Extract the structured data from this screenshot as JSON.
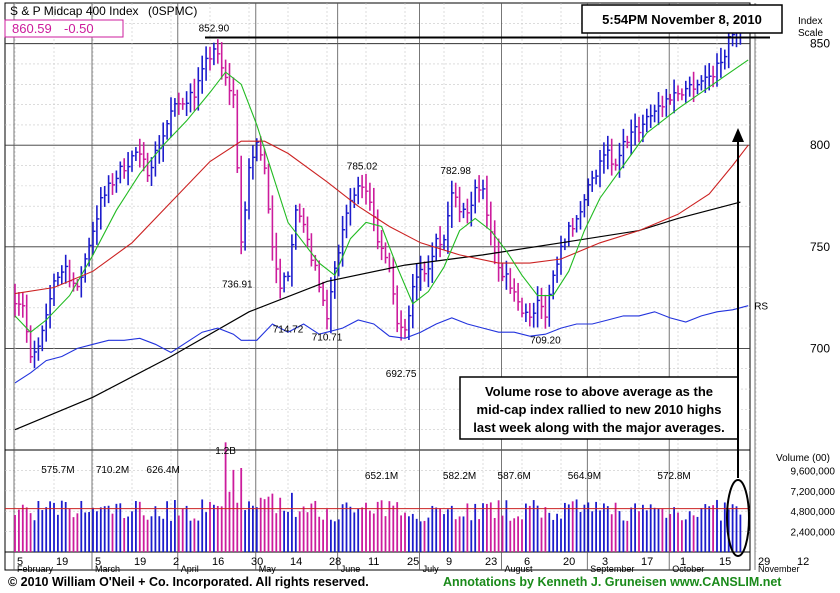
{
  "chart_data": {
    "type": "ohlc",
    "title": "S & P Midcap 400 Index",
    "symbol": "(0SPMC)",
    "last_price": "860.59",
    "change": "-0.50",
    "timestamp": "5:54PM November 8, 2010",
    "y_axis_label": [
      "Index",
      "Scale"
    ],
    "price_ticks": [
      850,
      800,
      750,
      700
    ],
    "ylim": [
      650,
      870
    ],
    "volume_label": "Volume (00)",
    "volume_ticks": [
      "9,600,000",
      "7,200,000",
      "4,800,000",
      "2,400,000"
    ],
    "volume_tick_values": [
      9600000,
      7200000,
      4800000,
      2400000
    ],
    "volume_max": 12000000,
    "rs_label": "RS",
    "x_tick_labels": [
      "5",
      "19",
      "5",
      "19",
      "2",
      "16",
      "30",
      "14",
      "28",
      "11",
      "25",
      "9",
      "23",
      "6",
      "20",
      "3",
      "17",
      "1",
      "15",
      "29",
      "12"
    ],
    "month_labels": [
      {
        "label": "February",
        "day": 0
      },
      {
        "label": "March",
        "day": 20
      },
      {
        "label": "April",
        "day": 42
      },
      {
        "label": "May",
        "day": 62
      },
      {
        "label": "June",
        "day": 83
      },
      {
        "label": "July",
        "day": 104
      },
      {
        "label": "August",
        "day": 125
      },
      {
        "label": "September",
        "day": 147
      },
      {
        "label": "October",
        "day": 168
      },
      {
        "label": "November",
        "day": 190
      }
    ],
    "x_tick_days": [
      0,
      10,
      20,
      30,
      40,
      50,
      60,
      70,
      80,
      90,
      100,
      110,
      120,
      130,
      140,
      150,
      160,
      170,
      180,
      190,
      200
    ],
    "price_annotations": [
      {
        "label": "852.90",
        "day": 51,
        "value": 852.9,
        "pos": "above"
      },
      {
        "label": "736.91",
        "day": 57,
        "value": 736.9,
        "pos": "below"
      },
      {
        "label": "714.72",
        "day": 70,
        "value": 714.7,
        "pos": "below"
      },
      {
        "label": "710.71",
        "day": 80,
        "value": 710.7,
        "pos": "below"
      },
      {
        "label": "785.02",
        "day": 89,
        "value": 785.0,
        "pos": "above"
      },
      {
        "label": "692.75",
        "day": 99,
        "value": 692.8,
        "pos": "below"
      },
      {
        "label": "782.98",
        "day": 113,
        "value": 783.0,
        "pos": "above"
      },
      {
        "label": "709.20",
        "day": 136,
        "value": 709.2,
        "pos": "below"
      }
    ],
    "volume_annotations": [
      {
        "label": "575.7M",
        "day": 11
      },
      {
        "label": "710.2M",
        "day": 25
      },
      {
        "label": "626.4M",
        "day": 38
      },
      {
        "label": "1.2B",
        "day": 54
      },
      {
        "label": "652.1M",
        "day": 94
      },
      {
        "label": "582.2M",
        "day": 114
      },
      {
        "label": "587.6M",
        "day": 128
      },
      {
        "label": "564.9M",
        "day": 146
      },
      {
        "label": "572.8M",
        "day": 169
      }
    ],
    "price_keypoints": [
      [
        0,
        725
      ],
      [
        2,
        722
      ],
      [
        4,
        694
      ],
      [
        6,
        700
      ],
      [
        8,
        714
      ],
      [
        10,
        734
      ],
      [
        13,
        740
      ],
      [
        16,
        728
      ],
      [
        19,
        752
      ],
      [
        22,
        772
      ],
      [
        25,
        782
      ],
      [
        28,
        790
      ],
      [
        31,
        796
      ],
      [
        34,
        788
      ],
      [
        37,
        800
      ],
      [
        40,
        816
      ],
      [
        43,
        822
      ],
      [
        46,
        826
      ],
      [
        49,
        840
      ],
      [
        51,
        848
      ],
      [
        54,
        832
      ],
      [
        56,
        824
      ],
      [
        58,
        752
      ],
      [
        60,
        788
      ],
      [
        62,
        800
      ],
      [
        64,
        790
      ],
      [
        66,
        748
      ],
      [
        68,
        728
      ],
      [
        70,
        738
      ],
      [
        72,
        770
      ],
      [
        74,
        758
      ],
      [
        76,
        746
      ],
      [
        78,
        730
      ],
      [
        80,
        716
      ],
      [
        82,
        740
      ],
      [
        84,
        760
      ],
      [
        86,
        770
      ],
      [
        88,
        780
      ],
      [
        90,
        776
      ],
      [
        92,
        762
      ],
      [
        94,
        748
      ],
      [
        96,
        738
      ],
      [
        98,
        712
      ],
      [
        100,
        708
      ],
      [
        102,
        728
      ],
      [
        104,
        740
      ],
      [
        106,
        738
      ],
      [
        108,
        756
      ],
      [
        110,
        752
      ],
      [
        112,
        776
      ],
      [
        114,
        770
      ],
      [
        116,
        766
      ],
      [
        118,
        778
      ],
      [
        120,
        776
      ],
      [
        122,
        756
      ],
      [
        124,
        742
      ],
      [
        126,
        734
      ],
      [
        128,
        728
      ],
      [
        130,
        720
      ],
      [
        132,
        714
      ],
      [
        134,
        722
      ],
      [
        136,
        718
      ],
      [
        138,
        736
      ],
      [
        140,
        752
      ],
      [
        142,
        758
      ],
      [
        144,
        762
      ],
      [
        146,
        776
      ],
      [
        148,
        782
      ],
      [
        150,
        790
      ],
      [
        152,
        796
      ],
      [
        154,
        788
      ],
      [
        156,
        800
      ],
      [
        158,
        806
      ],
      [
        160,
        808
      ],
      [
        162,
        814
      ],
      [
        164,
        818
      ],
      [
        166,
        820
      ],
      [
        168,
        824
      ],
      [
        170,
        826
      ],
      [
        172,
        828
      ],
      [
        174,
        830
      ],
      [
        176,
        832
      ],
      [
        178,
        834
      ],
      [
        180,
        838
      ],
      [
        182,
        846
      ],
      [
        184,
        856
      ],
      [
        186,
        860.59
      ]
    ],
    "price_ma_long_keypoints": [
      [
        0,
        660
      ],
      [
        20,
        676
      ],
      [
        40,
        696
      ],
      [
        60,
        718
      ],
      [
        80,
        733
      ],
      [
        100,
        741
      ],
      [
        120,
        746
      ],
      [
        140,
        752
      ],
      [
        160,
        758
      ],
      [
        170,
        764
      ],
      [
        186,
        772
      ]
    ],
    "price_ma_mid_keypoints": [
      [
        0,
        727
      ],
      [
        10,
        730
      ],
      [
        20,
        738
      ],
      [
        30,
        752
      ],
      [
        40,
        772
      ],
      [
        50,
        792
      ],
      [
        58,
        802
      ],
      [
        64,
        802
      ],
      [
        70,
        796
      ],
      [
        80,
        782
      ],
      [
        88,
        770
      ],
      [
        96,
        760
      ],
      [
        104,
        752
      ],
      [
        114,
        746
      ],
      [
        124,
        742
      ],
      [
        132,
        742
      ],
      [
        140,
        744
      ],
      [
        150,
        752
      ],
      [
        160,
        758
      ],
      [
        170,
        766
      ],
      [
        178,
        776
      ],
      [
        184,
        790
      ],
      [
        188,
        800
      ]
    ],
    "price_ma_short_keypoints": [
      [
        0,
        716
      ],
      [
        4,
        708
      ],
      [
        8,
        714
      ],
      [
        14,
        726
      ],
      [
        20,
        746
      ],
      [
        26,
        768
      ],
      [
        32,
        786
      ],
      [
        38,
        800
      ],
      [
        44,
        812
      ],
      [
        50,
        826
      ],
      [
        54,
        836
      ],
      [
        58,
        830
      ],
      [
        62,
        810
      ],
      [
        66,
        786
      ],
      [
        70,
        762
      ],
      [
        74,
        752
      ],
      [
        78,
        742
      ],
      [
        82,
        736
      ],
      [
        86,
        754
      ],
      [
        90,
        762
      ],
      [
        94,
        760
      ],
      [
        98,
        740
      ],
      [
        102,
        722
      ],
      [
        106,
        728
      ],
      [
        110,
        740
      ],
      [
        114,
        758
      ],
      [
        118,
        764
      ],
      [
        122,
        758
      ],
      [
        126,
        748
      ],
      [
        130,
        736
      ],
      [
        134,
        726
      ],
      [
        138,
        726
      ],
      [
        142,
        738
      ],
      [
        146,
        758
      ],
      [
        150,
        774
      ],
      [
        156,
        790
      ],
      [
        162,
        806
      ],
      [
        170,
        818
      ],
      [
        176,
        826
      ],
      [
        182,
        834
      ],
      [
        188,
        842
      ]
    ],
    "rs_keypoints": [
      [
        0,
        683
      ],
      [
        4,
        688
      ],
      [
        8,
        694
      ],
      [
        12,
        696
      ],
      [
        16,
        700
      ],
      [
        20,
        702
      ],
      [
        24,
        704
      ],
      [
        28,
        704
      ],
      [
        32,
        705
      ],
      [
        36,
        702
      ],
      [
        40,
        698
      ],
      [
        44,
        703
      ],
      [
        48,
        708
      ],
      [
        52,
        710
      ],
      [
        56,
        707
      ],
      [
        58,
        704
      ],
      [
        62,
        704
      ],
      [
        66,
        712
      ],
      [
        70,
        708
      ],
      [
        74,
        712
      ],
      [
        78,
        707
      ],
      [
        80,
        708
      ],
      [
        84,
        710
      ],
      [
        88,
        714
      ],
      [
        92,
        712
      ],
      [
        96,
        706
      ],
      [
        100,
        705
      ],
      [
        104,
        708
      ],
      [
        108,
        712
      ],
      [
        112,
        715
      ],
      [
        116,
        712
      ],
      [
        120,
        710
      ],
      [
        124,
        708
      ],
      [
        128,
        708
      ],
      [
        132,
        706
      ],
      [
        136,
        707
      ],
      [
        140,
        710
      ],
      [
        144,
        712
      ],
      [
        148,
        712
      ],
      [
        152,
        714
      ],
      [
        156,
        716
      ],
      [
        160,
        716
      ],
      [
        164,
        718
      ],
      [
        168,
        715
      ],
      [
        172,
        713
      ],
      [
        176,
        716
      ],
      [
        180,
        718
      ],
      [
        184,
        719
      ],
      [
        188,
        721
      ]
    ],
    "volume_ma_value": 5100000,
    "horizontal_line_value": 853,
    "callout_text": [
      "Volume rose to above average as the",
      "mid-cap index rallied to new 2010 highs",
      "last week along with the major averages."
    ]
  },
  "footer": {
    "copyright": "© 2010 William O'Neil + Co. Incorporated. All rights reserved.",
    "annotations_prefix": "Annotations by Kenneth J. Gruneisen",
    "annotations_url": "www.CANSLIM.net"
  },
  "colors": {
    "up_bar": "#1c1ccc",
    "down_bar": "#cc1c9c",
    "ma_long": "#000000",
    "ma_mid": "#cc2222",
    "ma_short": "#22bb22",
    "rs_line": "#2233dd",
    "grid": "#c8c8c8",
    "vline": "#555555",
    "price_text": "#cc1c9c"
  }
}
